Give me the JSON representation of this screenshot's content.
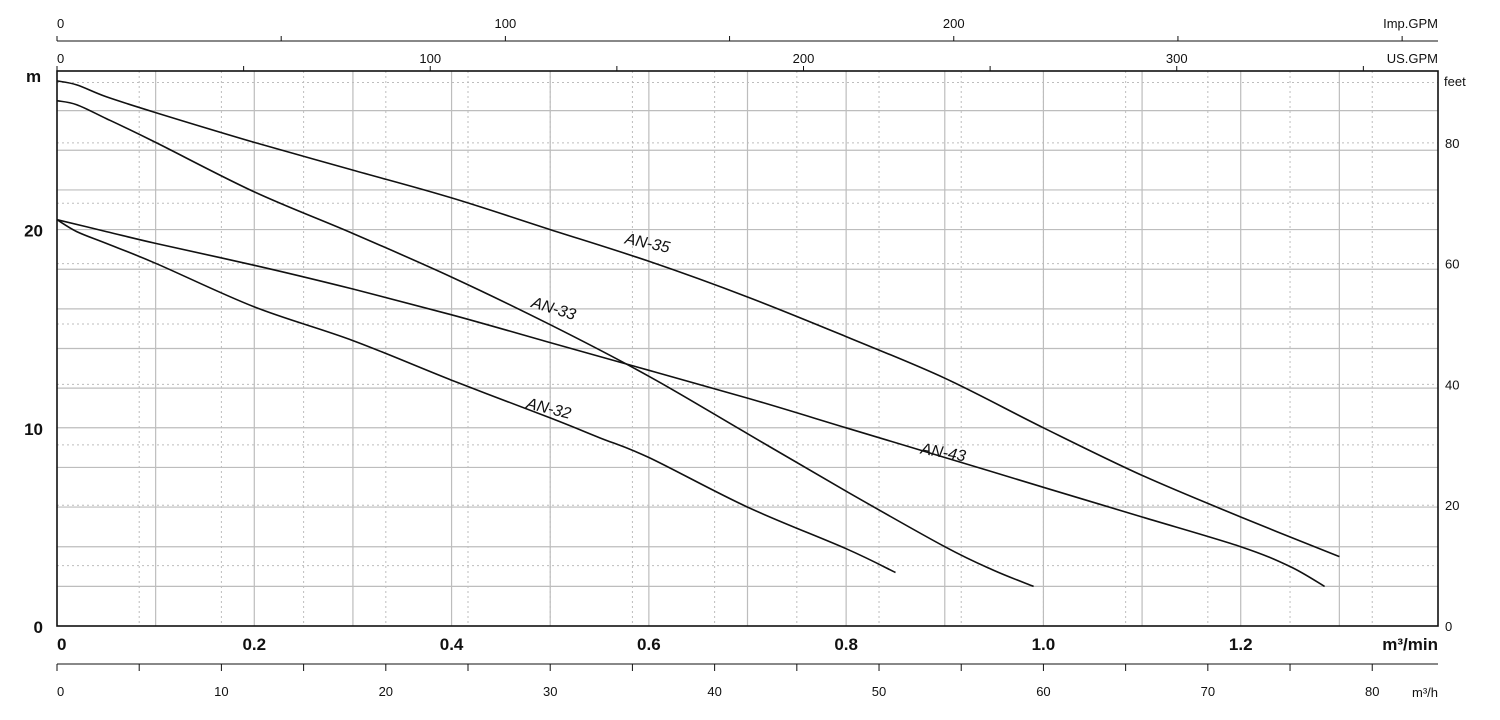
{
  "chart_data": {
    "type": "line",
    "x_axis_bottom": {
      "unit": "m³/min",
      "range": [
        0,
        1.4
      ],
      "ticks": [
        "0",
        "0.2",
        "0.4",
        "0.6",
        "0.8",
        "1.0",
        "1.2"
      ]
    },
    "x_axis_m3h": {
      "unit": "m³/h",
      "range": [
        0,
        84
      ],
      "ticks": [
        "0",
        "10",
        "20",
        "30",
        "40",
        "50",
        "60",
        "70",
        "80"
      ]
    },
    "x_axis_us_gpm": {
      "unit": "US.GPM",
      "range": [
        0,
        370
      ],
      "ticks": [
        "0",
        "100",
        "200",
        "300"
      ]
    },
    "x_axis_imp_gpm": {
      "unit": "Imp.GPM",
      "range": [
        0,
        308
      ],
      "ticks": [
        "0",
        "100",
        "200"
      ]
    },
    "y_axis_left": {
      "unit": "m",
      "range": [
        0,
        28
      ],
      "ticks": [
        "0",
        "10",
        "20"
      ]
    },
    "y_axis_right": {
      "unit": "feet",
      "range": [
        0,
        91.9
      ],
      "ticks": [
        "0",
        "20",
        "40",
        "60",
        "80"
      ]
    },
    "grid": true,
    "series": [
      {
        "name": "AN-35",
        "x": [
          0,
          0.02,
          0.05,
          0.1,
          0.2,
          0.3,
          0.4,
          0.5,
          0.6,
          0.7,
          0.8,
          0.9,
          1.0,
          1.1,
          1.2,
          1.3
        ],
        "y": [
          27.5,
          27.3,
          26.7,
          25.9,
          24.4,
          23.0,
          21.6,
          20.0,
          18.4,
          16.6,
          14.6,
          12.5,
          10.0,
          7.6,
          5.5,
          3.5
        ]
      },
      {
        "name": "AN-33",
        "x": [
          0,
          0.02,
          0.05,
          0.1,
          0.2,
          0.3,
          0.4,
          0.5,
          0.6,
          0.7,
          0.8,
          0.9,
          0.95,
          0.99
        ],
        "y": [
          26.5,
          26.3,
          25.6,
          24.4,
          21.9,
          19.8,
          17.6,
          15.2,
          12.6,
          9.7,
          6.8,
          4.0,
          2.8,
          2.0
        ]
      },
      {
        "name": "AN-43",
        "x": [
          0,
          0.05,
          0.1,
          0.2,
          0.3,
          0.4,
          0.5,
          0.6,
          0.7,
          0.8,
          0.9,
          1.0,
          1.1,
          1.2,
          1.25,
          1.285
        ],
        "y": [
          20.5,
          19.9,
          19.3,
          18.2,
          17.0,
          15.7,
          14.3,
          12.9,
          11.5,
          10.0,
          8.5,
          7.0,
          5.5,
          4.0,
          3.0,
          2.0
        ]
      },
      {
        "name": "AN-32",
        "x": [
          0,
          0.02,
          0.05,
          0.1,
          0.2,
          0.3,
          0.4,
          0.5,
          0.55,
          0.6,
          0.7,
          0.8,
          0.85
        ],
        "y": [
          20.5,
          19.9,
          19.3,
          18.3,
          16.1,
          14.4,
          12.4,
          10.5,
          9.5,
          8.5,
          6.0,
          3.9,
          2.7
        ]
      }
    ]
  },
  "labels": {
    "an35": "AN-35",
    "an33": "AN-33",
    "an43": "AN-43",
    "an32": "AN-32"
  }
}
